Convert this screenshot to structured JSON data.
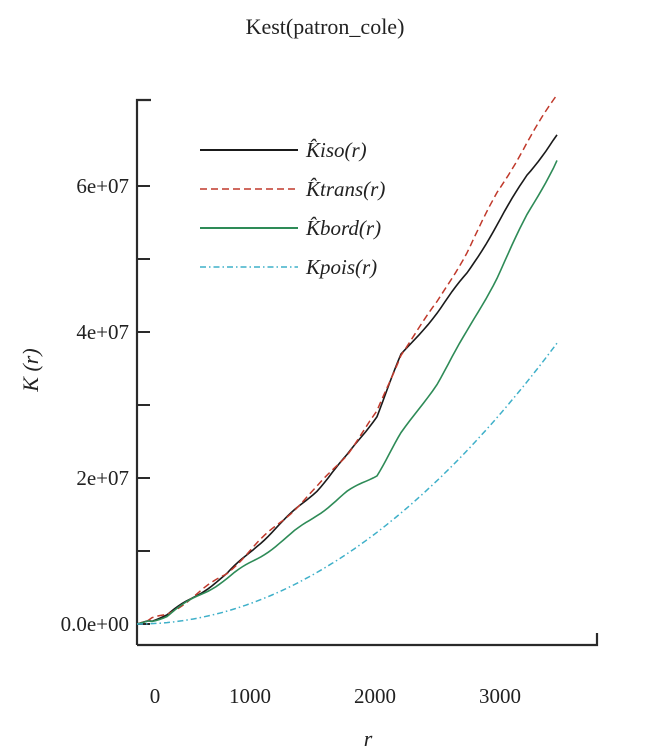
{
  "chart_data": {
    "type": "line",
    "title": "Kest(patron_cole)",
    "xlabel": "r",
    "ylabel": "K (r)",
    "xlim": [
      0,
      3500
    ],
    "ylim": [
      0,
      71500000
    ],
    "x_ticks": [
      0,
      1000,
      2000,
      3000
    ],
    "x_tick_labels": [
      "0",
      "1000",
      "2000",
      "3000"
    ],
    "y_ticks": [
      0,
      20000000,
      40000000,
      60000000
    ],
    "y_tick_labels": [
      "0.0e+00",
      "2e+07",
      "4e+07",
      "6e+07"
    ],
    "y_minor_ticks": [
      10000000,
      30000000,
      50000000
    ],
    "grid": false,
    "legend_position": "upper left",
    "x": [
      0,
      250,
      500,
      750,
      1000,
      1250,
      1500,
      1750,
      2000,
      2200,
      2500,
      2750,
      3000,
      3250,
      3500
    ],
    "series": [
      {
        "name": "K̂iso(r)",
        "color": "#1a1a1a",
        "dash": "solid",
        "values": [
          0,
          1200000,
          4000000,
          6800000,
          10800000,
          14500000,
          18400000,
          23000000,
          28600000,
          36800000,
          42700000,
          48000000,
          54700000,
          61500000,
          67000000
        ]
      },
      {
        "name": "K̂trans(r)",
        "color": "#c0392b",
        "dash": "dashed",
        "values": [
          0,
          1300000,
          4100000,
          7000000,
          11000000,
          14800000,
          18700000,
          23300000,
          29000000,
          37000000,
          44000000,
          51000000,
          59000000,
          66000000,
          72500000
        ]
      },
      {
        "name": "K̂bord(r)",
        "color": "#2e8b57",
        "dash": "solid",
        "values": [
          0,
          1100000,
          3800000,
          6200000,
          9000000,
          11800000,
          15000000,
          18000000,
          20500000,
          26000000,
          33000000,
          40000000,
          47500000,
          56000000,
          63500000
        ]
      },
      {
        "name": "Kpois(r)",
        "color": "#3fb0c9",
        "dash": "dotdash",
        "values": [
          0,
          196350,
          785398,
          1767146,
          3141593,
          4908739,
          7068583,
          9621128,
          12566371,
          15205308,
          19634954,
          23758294,
          28274334,
          33183072,
          38484510
        ]
      }
    ]
  },
  "legend": {
    "items": [
      {
        "label": "K̂iso(r)"
      },
      {
        "label": "K̂trans(r)"
      },
      {
        "label": "K̂bord(r)"
      },
      {
        "label": "Kpois(r)"
      }
    ]
  }
}
